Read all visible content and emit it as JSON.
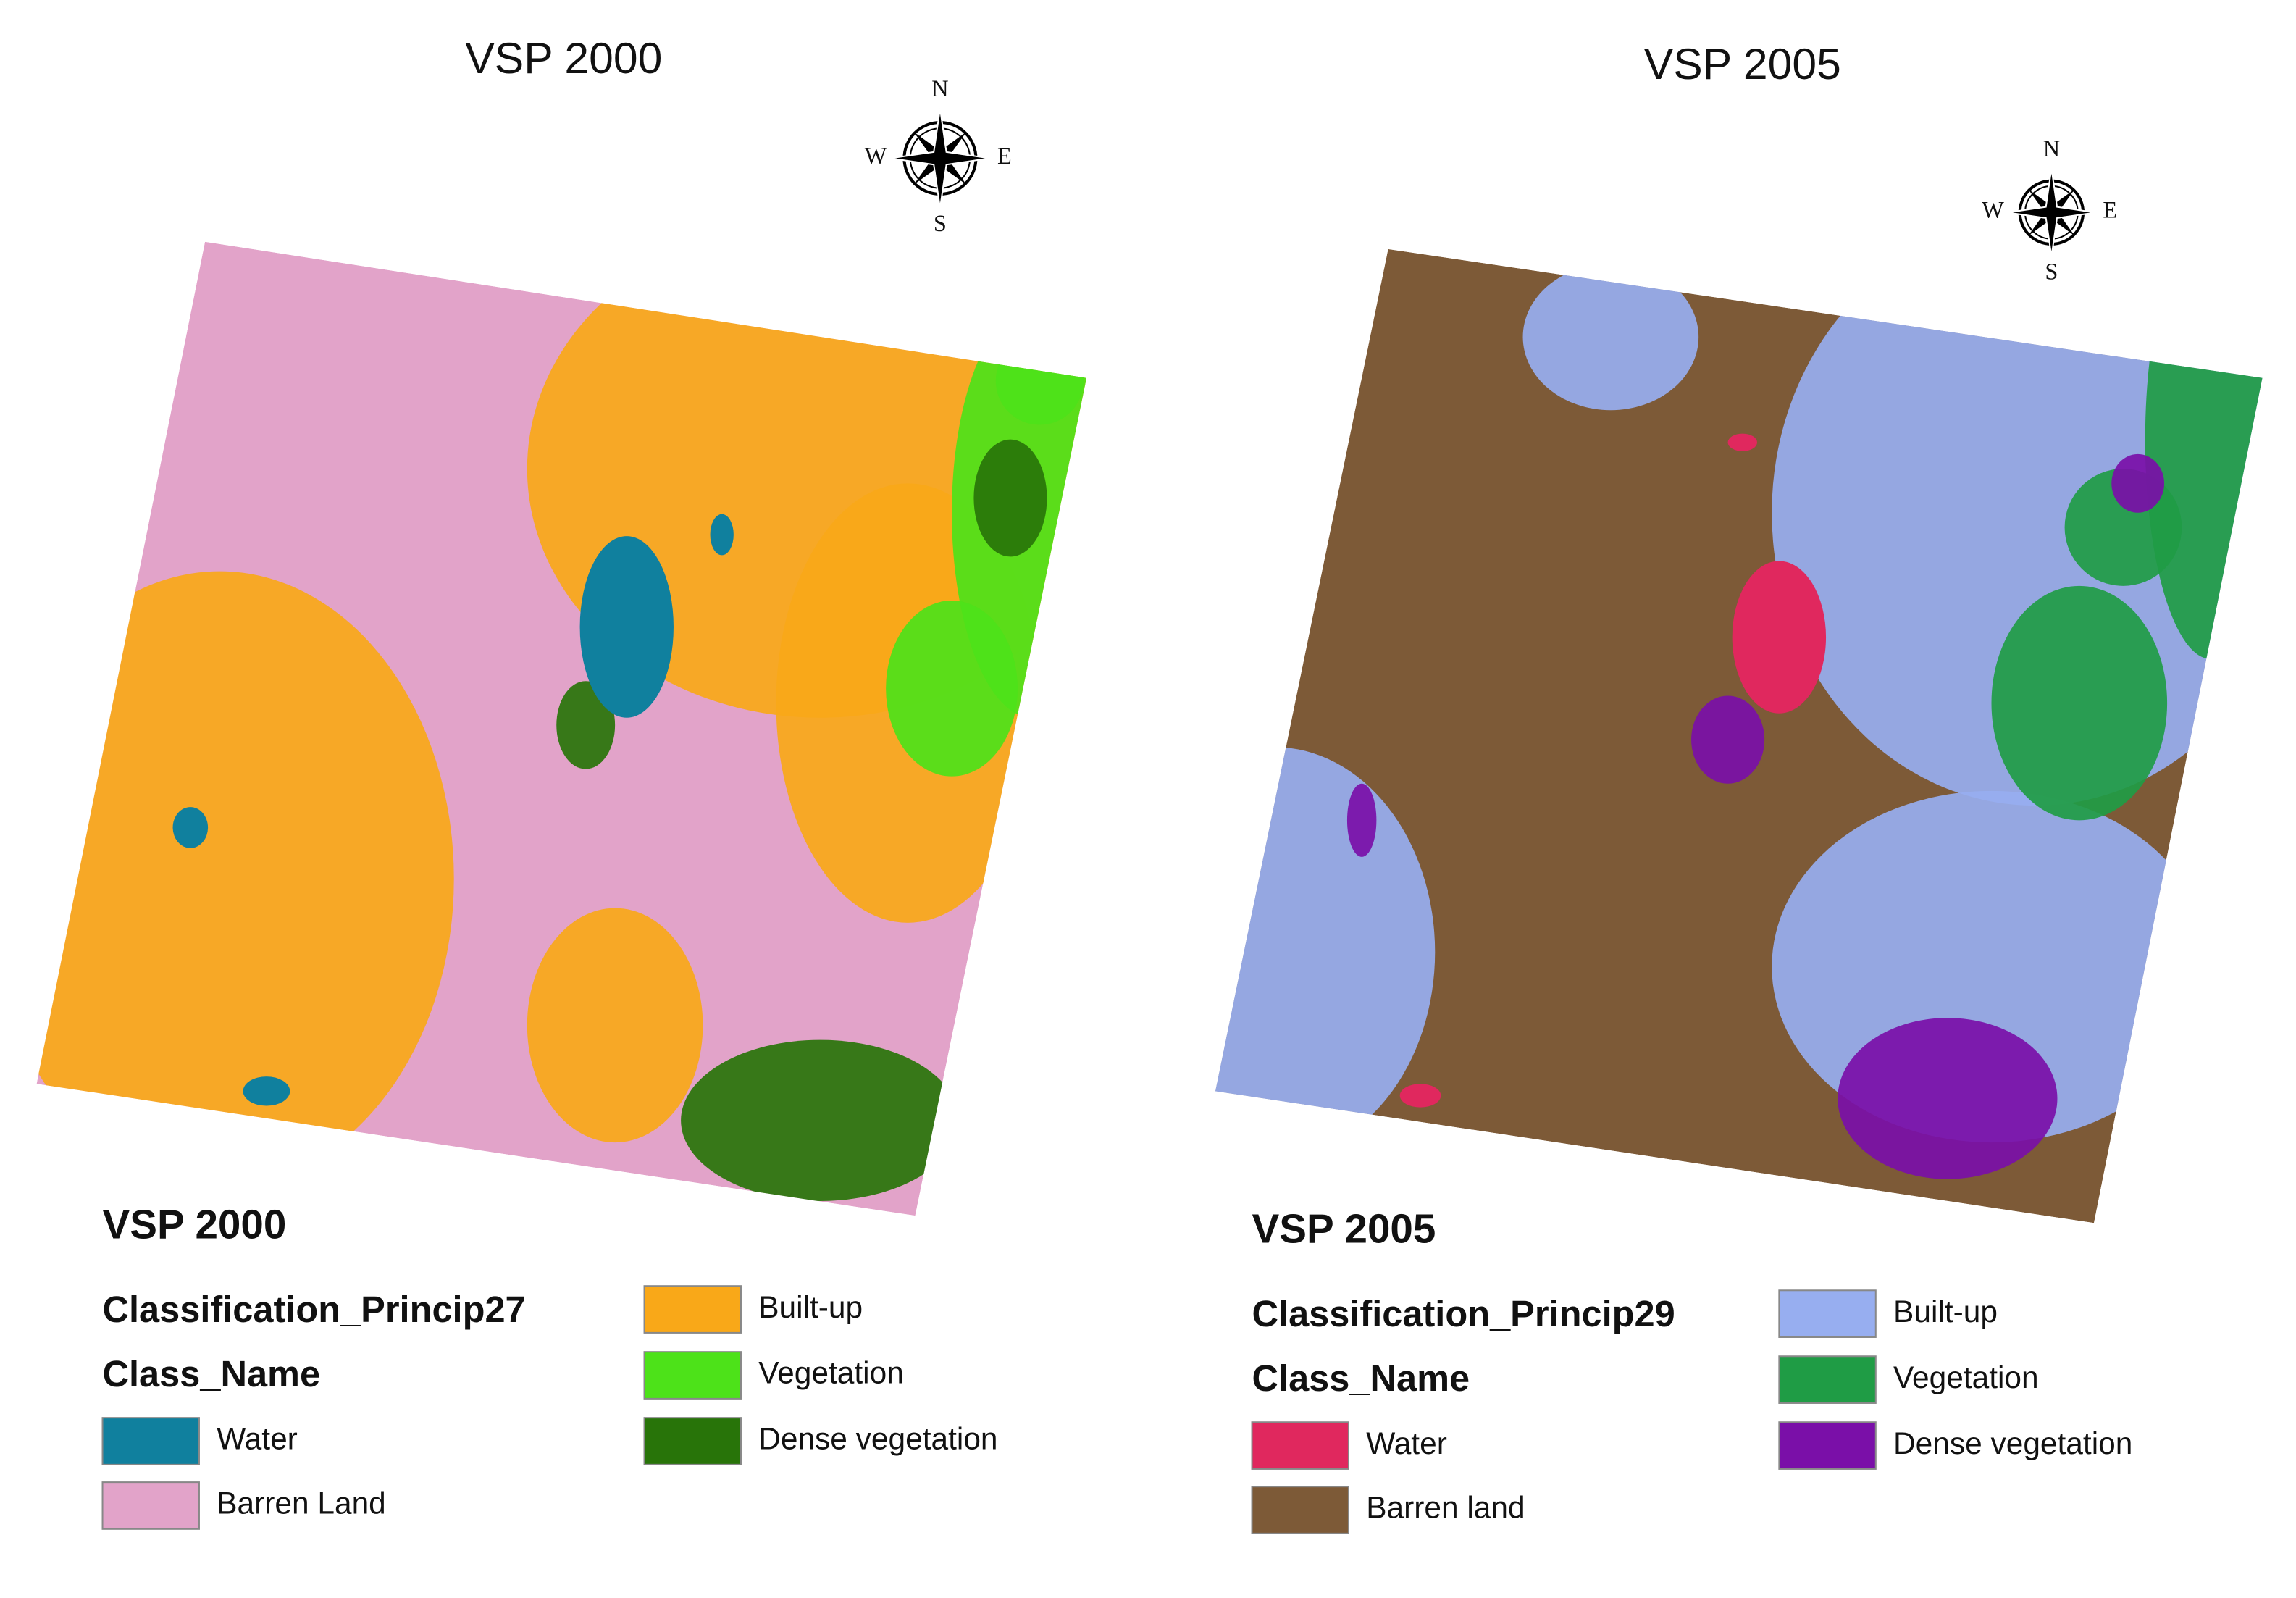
{
  "maps": [
    {
      "title": "VSP 2000",
      "compass": {
        "n": "N",
        "s": "S",
        "e": "E",
        "w": "W"
      },
      "legend": {
        "title": "VSP 2000",
        "layer": "Classification_Princip27",
        "field": "Class_Name",
        "classes": [
          {
            "label": "Water",
            "color": "#10809e"
          },
          {
            "label": "Barren Land",
            "color": "#e2a3c9"
          },
          {
            "label": "Built-up",
            "color": "#f9a818"
          },
          {
            "label": "Vegetation",
            "color": "#4de219"
          },
          {
            "label": "Dense vegetation",
            "color": "#287409"
          }
        ]
      }
    },
    {
      "title": "VSP 2005",
      "compass": {
        "n": "N",
        "s": "S",
        "e": "E",
        "w": "W"
      },
      "legend": {
        "title": "VSP 2005",
        "layer": "Classification_Princip29",
        "field": "Class_Name",
        "classes": [
          {
            "label": "Water",
            "color": "#e0285e"
          },
          {
            "label": "Barren land",
            "color": "#7d5a37"
          },
          {
            "label": "Built-up",
            "color": "#97aef0"
          },
          {
            "label": "Vegetation",
            "color": "#1f9c45"
          },
          {
            "label": "Dense vegetation",
            "color": "#7a0fa8"
          }
        ]
      }
    }
  ]
}
